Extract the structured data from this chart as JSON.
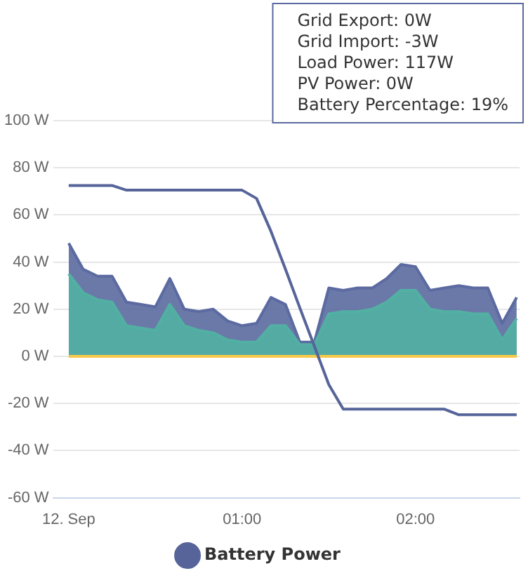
{
  "chart_data": {
    "type": "area",
    "x": [
      0,
      0.0833,
      0.1667,
      0.25,
      0.3333,
      0.4167,
      0.5,
      0.5833,
      0.6667,
      0.75,
      0.8333,
      0.9167,
      1,
      1.0833,
      1.1667,
      1.25,
      1.3333,
      1.4167,
      1.5,
      1.5833,
      1.6667,
      1.75,
      1.8333,
      1.9167,
      2,
      2.0833,
      2.1667,
      2.25,
      2.3333,
      2.4167,
      2.5,
      2.5833
    ],
    "series": [
      {
        "color": "#5b6aa0",
        "values": [
          48,
          37,
          34,
          34,
          23,
          22,
          21,
          33,
          20,
          19,
          20,
          15,
          13,
          14,
          25,
          22,
          6,
          6,
          29,
          28,
          29,
          29,
          33,
          39,
          38,
          28,
          29,
          30,
          29,
          29,
          14,
          25
        ]
      },
      {
        "color": "#52b0a3",
        "values": [
          35,
          27,
          24,
          23,
          13,
          12,
          11,
          22,
          13,
          11,
          10,
          7,
          6,
          6,
          13,
          13,
          5,
          5,
          18,
          19,
          19,
          20,
          23,
          28,
          28,
          20,
          19,
          19,
          18,
          18,
          7,
          16
        ]
      },
      {
        "type": "line",
        "color": "#f7c948",
        "values": [
          0,
          0,
          0,
          0,
          0,
          0,
          0,
          0,
          0,
          0,
          0,
          0,
          0,
          0,
          0,
          0,
          0,
          0,
          0,
          0,
          0,
          0,
          0,
          0,
          0,
          0,
          0,
          0,
          0,
          0,
          0,
          0
        ]
      },
      {
        "type": "line",
        "name": "Battery Power",
        "color": "#56649a",
        "values": [
          72.5,
          72.5,
          72.5,
          72.5,
          70.5,
          70.5,
          70.5,
          70.5,
          70.5,
          70.5,
          70.5,
          70.5,
          70.5,
          67,
          53,
          37,
          20.5,
          4.3,
          -12,
          -22.4,
          -22.4,
          -22.4,
          -22.4,
          -22.4,
          -22.4,
          -22.4,
          -22.4,
          -24.8,
          -24.8,
          -24.8,
          -24.8,
          -24.8
        ]
      }
    ],
    "xlim": [
      -0.09,
      2.6
    ],
    "xticks": [
      {
        "value": 0,
        "label": "12. Sep"
      },
      {
        "value": 1,
        "label": "01:00"
      },
      {
        "value": 2,
        "label": "02:00"
      }
    ],
    "ylim": [
      -60,
      100
    ],
    "yticks": [
      {
        "value": -60,
        "label": "-60 W"
      },
      {
        "value": -40,
        "label": "-40 W"
      },
      {
        "value": -20,
        "label": "-20 W"
      },
      {
        "value": 0,
        "label": "0 W"
      },
      {
        "value": 20,
        "label": "20 W"
      },
      {
        "value": 40,
        "label": "40 W"
      },
      {
        "value": 60,
        "label": "60 W"
      },
      {
        "value": 80,
        "label": "80 W"
      },
      {
        "value": 100,
        "label": "100 W"
      }
    ],
    "grid": "y",
    "legend": "bottom",
    "marker": "none",
    "line_style": "solid",
    "annotations": [
      "Grid Export: 0W",
      "Grid Import: -3W",
      "Load Power: 117W",
      "PV Power: 0W",
      "Battery Percentage: 19%"
    ]
  }
}
